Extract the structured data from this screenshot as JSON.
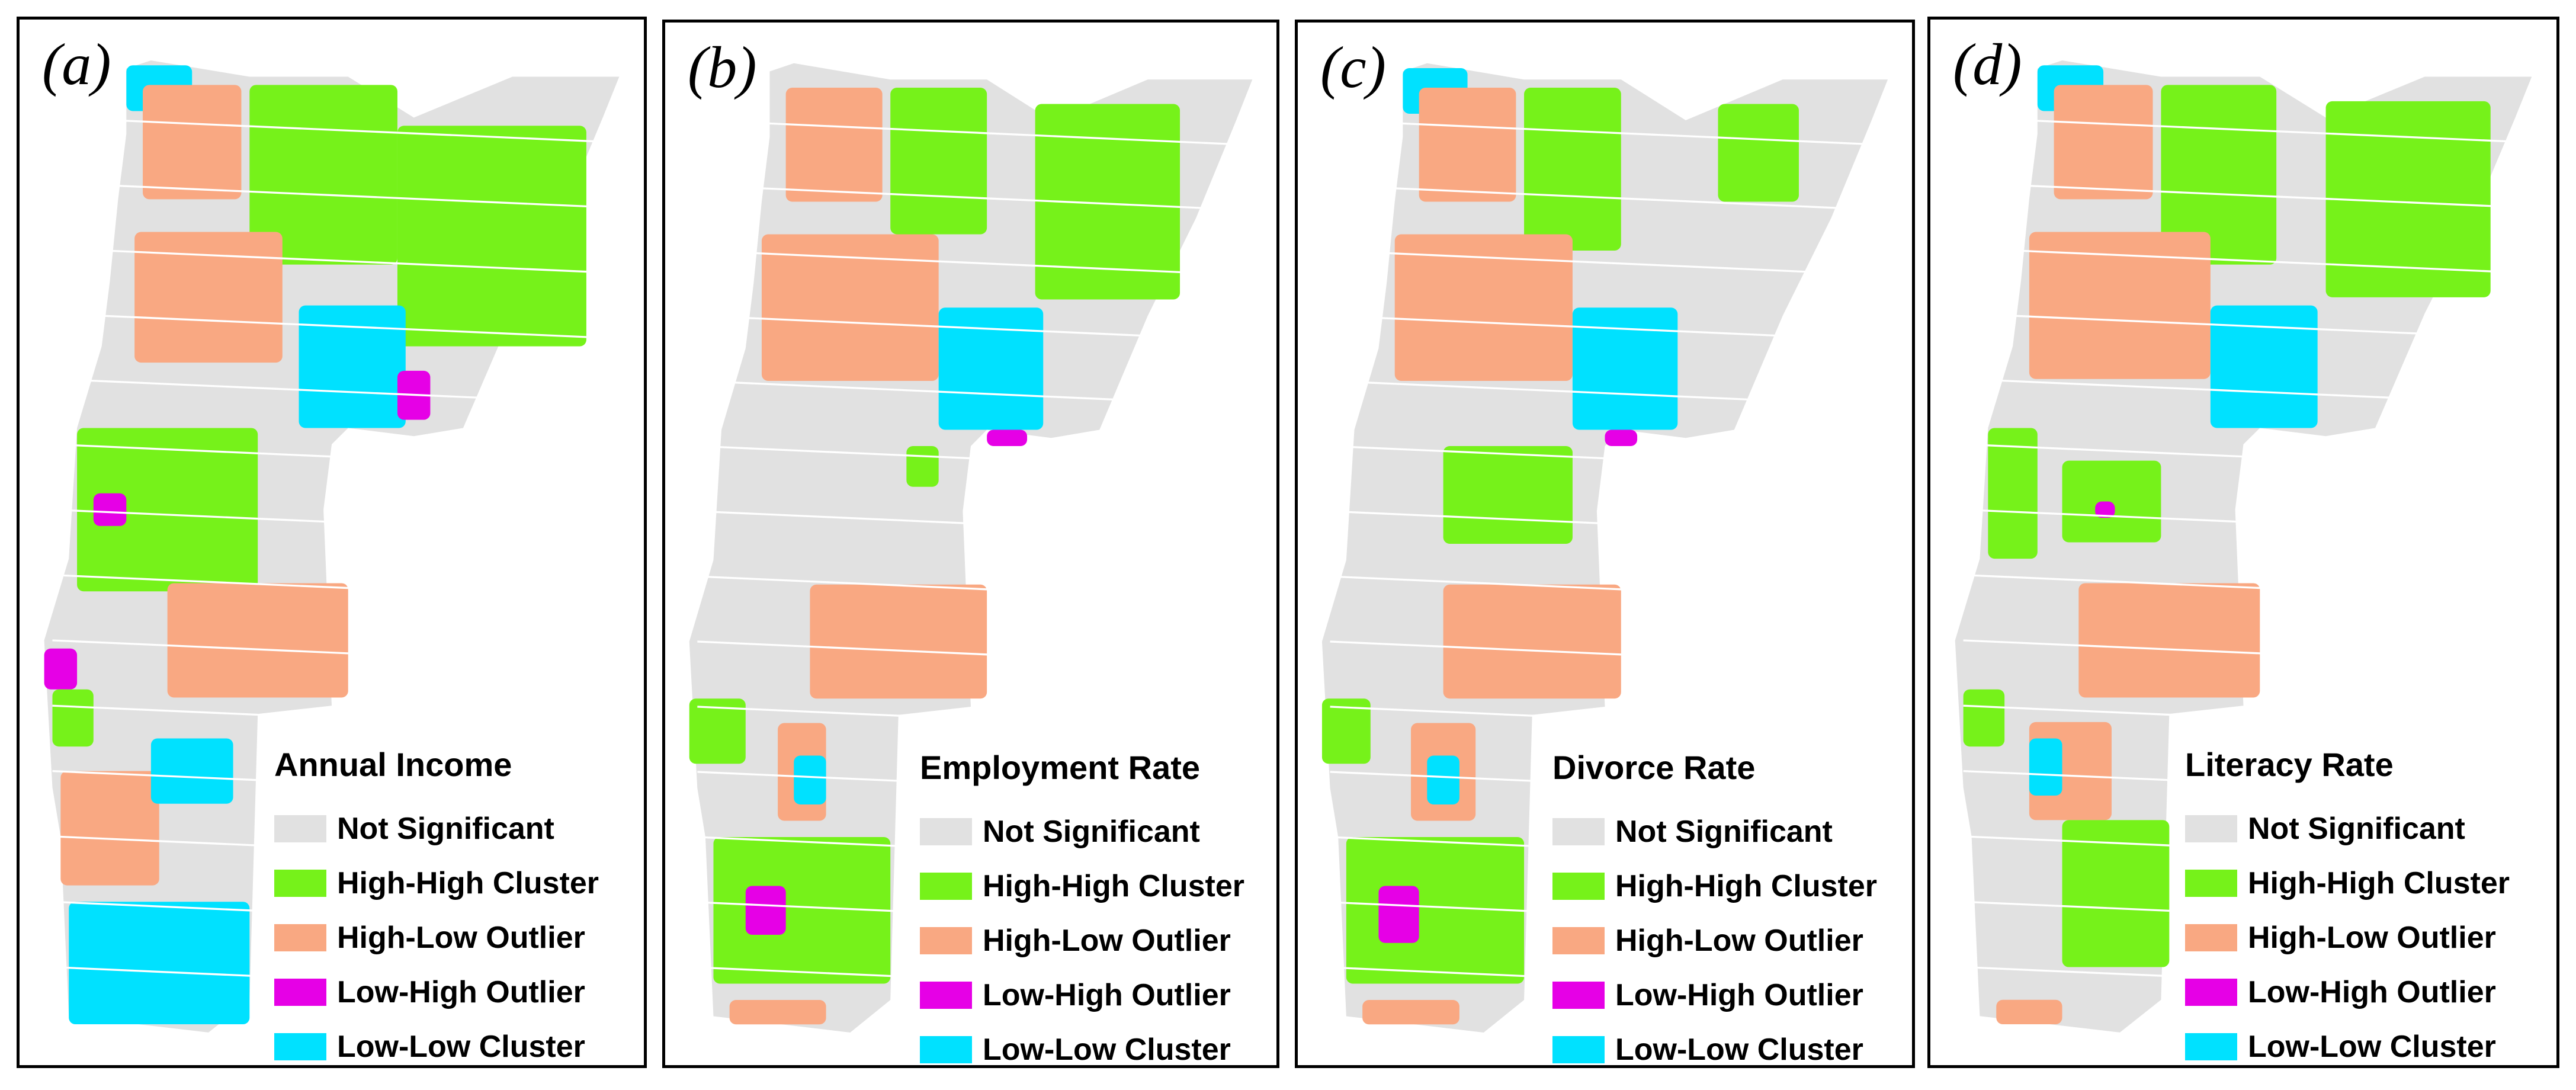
{
  "panels": [
    {
      "label": "(a)",
      "legend_title": "Annual Income",
      "legend": [
        {
          "name": "Not Significant",
          "color": "#e1e1e1"
        },
        {
          "name": "High-High Cluster",
          "color": "#76f21a"
        },
        {
          "name": "High-Low Outlier",
          "color": "#f9a882"
        },
        {
          "name": "Low-High Outlier",
          "color": "#e600e6"
        },
        {
          "name": "Low-Low Cluster",
          "color": "#00e1ff"
        }
      ]
    },
    {
      "label": "(b)",
      "legend_title": "Employment Rate",
      "legend": [
        {
          "name": "Not Significant",
          "color": "#e1e1e1"
        },
        {
          "name": "High-High Cluster",
          "color": "#76f21a"
        },
        {
          "name": "High-Low Outlier",
          "color": "#f9a882"
        },
        {
          "name": "Low-High Outlier",
          "color": "#e600e6"
        },
        {
          "name": "Low-Low Cluster",
          "color": "#00e1ff"
        }
      ]
    },
    {
      "label": "(c)",
      "legend_title": "Divorce Rate",
      "legend": [
        {
          "name": "Not Significant",
          "color": "#e1e1e1"
        },
        {
          "name": "High-High Cluster",
          "color": "#76f21a"
        },
        {
          "name": "High-Low Outlier",
          "color": "#f9a882"
        },
        {
          "name": "Low-High Outlier",
          "color": "#e600e6"
        },
        {
          "name": "Low-Low Cluster",
          "color": "#00e1ff"
        }
      ]
    },
    {
      "label": "(d)",
      "legend_title": "Literacy Rate",
      "legend": [
        {
          "name": "Not Significant",
          "color": "#e1e1e1"
        },
        {
          "name": "High-High Cluster",
          "color": "#76f21a"
        },
        {
          "name": "High-Low Outlier",
          "color": "#f9a882"
        },
        {
          "name": "Low-High Outlier",
          "color": "#e600e6"
        },
        {
          "name": "Low-Low Cluster",
          "color": "#00e1ff"
        }
      ]
    }
  ]
}
